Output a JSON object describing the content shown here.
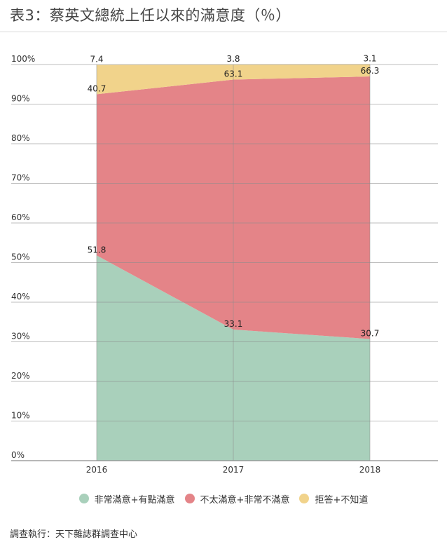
{
  "title": "表3：蔡英文總統上任以來的滿意度（％）",
  "source": "調查執行：天下雜誌群調查中心",
  "colors": {
    "satisfied": "#a9d0bb",
    "dissatisfied": "#e48488",
    "no_answer": "#f1d38b",
    "grid": "#8c8c8c",
    "axis_text": "#333333"
  },
  "chart_data": {
    "type": "area",
    "stacked": true,
    "categories": [
      "2016",
      "2017",
      "2018"
    ],
    "ylim": [
      0,
      100
    ],
    "yticks": [
      "0%",
      "10%",
      "20%",
      "30%",
      "40%",
      "50%",
      "60%",
      "70%",
      "80%",
      "90%",
      "100%"
    ],
    "grid": true,
    "legend_position": "bottom",
    "series": [
      {
        "key": "satisfied",
        "name": "非常滿意+有點滿意",
        "values": [
          51.8,
          33.1,
          30.7
        ],
        "labels": [
          "51.8",
          "33.1",
          "30.7"
        ]
      },
      {
        "key": "dissatisfied",
        "name": "不太滿意+非常不滿意",
        "values": [
          40.7,
          63.1,
          66.3
        ],
        "labels": [
          "40.7",
          "63.1",
          "66.3"
        ]
      },
      {
        "key": "no_answer",
        "name": "拒答+不知道",
        "values": [
          7.4,
          3.8,
          3.1
        ],
        "labels": [
          "7.4",
          "3.8",
          "3.1"
        ]
      }
    ]
  }
}
